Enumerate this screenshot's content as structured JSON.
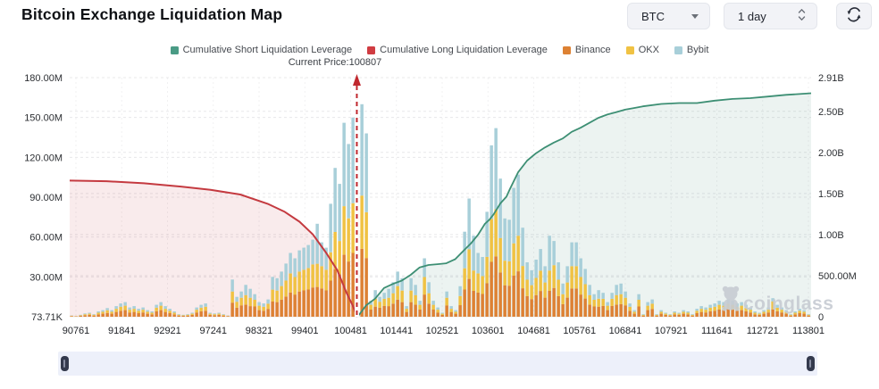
{
  "header": {
    "title": "Bitcoin Exchange Liquidation Map",
    "coin_selector": "BTC",
    "interval_selector": "1 day"
  },
  "legend": [
    {
      "label": "Cumulative Short Liquidation Leverage",
      "color": "#4a9b85"
    },
    {
      "label": "Cumulative Long Liquidation Leverage",
      "color": "#d03c42"
    },
    {
      "label": "Binance",
      "color": "#dd8133"
    },
    {
      "label": "OKX",
      "color": "#f0c243"
    },
    {
      "label": "Bybit",
      "color": "#a8cfd9"
    }
  ],
  "annotation": {
    "current_price_label": "Current Price:100807",
    "current_price": 100807
  },
  "watermark": "coinglass",
  "colors": {
    "current_price_line": "#c0282e",
    "long_area_fill": "rgba(201,62,66,0.10)",
    "short_area_fill": "rgba(70,140,115,0.10)",
    "slider_track": "#edf0fa",
    "slider_handle": "#343a4d"
  },
  "chart_data": {
    "type": "stacked-bar+line",
    "title": "Bitcoin Exchange Liquidation Map",
    "x_ticks": [
      "90761",
      "91841",
      "92921",
      "97241",
      "98321",
      "99401",
      "100481",
      "101441",
      "102521",
      "103601",
      "104681",
      "105761",
      "106841",
      "107921",
      "111641",
      "112721",
      "113801"
    ],
    "left_axis": {
      "ticks": [
        "73.71K",
        "30.00M",
        "60.00M",
        "90.00M",
        "120.00M",
        "150.00M",
        "180.00M"
      ],
      "values_M": [
        0,
        30,
        60,
        90,
        120,
        150,
        180
      ],
      "max_M": 180
    },
    "right_axis": {
      "ticks": [
        "0",
        "500.00M",
        "1.00B",
        "1.50B",
        "2.00B",
        "2.50B",
        "2.91B"
      ],
      "values_B": [
        0,
        0.5,
        1.0,
        1.5,
        2.0,
        2.5,
        2.91
      ],
      "max_B": 2.91
    },
    "current_price_frac": 0.3873,
    "bars": {
      "unit": "M USD",
      "series": [
        {
          "name": "Binance",
          "color": "#dd8133",
          "values": [
            0.5,
            0.3,
            0.7,
            1.1,
            1.4,
            0.9,
            1.8,
            2.3,
            2.9,
            2.3,
            3.6,
            4.5,
            5,
            3.2,
            3.6,
            2.7,
            3.2,
            2.3,
            1.8,
            4.1,
            5,
            3.6,
            2.7,
            1.8,
            0.9,
            0.7,
            0.9,
            1.4,
            3.2,
            4.1,
            4.5,
            1.4,
            1.1,
            1.4,
            0.9,
            0.5,
            10.6,
            6.8,
            8.6,
            9.1,
            8,
            7.7,
            5,
            4.5,
            5.9,
            11.4,
            11,
            12.9,
            15.2,
            18.2,
            16.7,
            19,
            19.8,
            20.5,
            22,
            22.4,
            21.3,
            19.8,
            27.2,
            35.8,
            32,
            46.7,
            41.6,
            48,
            43.8,
            51.2,
            44.2,
            5.4,
            7.6,
            6.8,
            8.1,
            8,
            9.9,
            12.9,
            11,
            3.6,
            11,
            9.1,
            5.4,
            16.7,
            9.9,
            5.4,
            3.2,
            1.4,
            8.6,
            3.6,
            2.3,
            8.7,
            20.5,
            28.5,
            19.5,
            18.2,
            17.1,
            25.3,
            41.3,
            45.4,
            33.3,
            23.7,
            23.4,
            31,
            34.2,
            21.4,
            15.6,
            13.3,
            16.3,
            19.4,
            14.4,
            19.5,
            21.7,
            15.6,
            9.5,
            14.4,
            21.3,
            21.3,
            16.7,
            13.7,
            9.1,
            7.7,
            7.6,
            8.1,
            5,
            8.1,
            9.1,
            9.5,
            8.6,
            4.5,
            2.3,
            7.7,
            0.9,
            5,
            5.9,
            0.9,
            2.3,
            1.4,
            0.9,
            1.8,
            1.4,
            2.3,
            1.8,
            0.9,
            2.7,
            3.6,
            3.2,
            4.1,
            4.5,
            5.4,
            5,
            5.9,
            5.4,
            4.5,
            5,
            4.1,
            3.2,
            1.8,
            1.4,
            2.3,
            3.2,
            5.6,
            4.1,
            3.2,
            2.3,
            0.9,
            1.8,
            2.7,
            2.3,
            0.9
          ]
        },
        {
          "name": "OKX",
          "color": "#f0c243",
          "values": [
            0.3,
            0.2,
            0.4,
            0.8,
            0.9,
            0.6,
            1.2,
            1.5,
            2,
            1.5,
            2.4,
            3,
            3.3,
            2.1,
            2.4,
            1.8,
            2.1,
            1.5,
            1.2,
            2.7,
            3.3,
            2.4,
            1.8,
            1.2,
            0.6,
            0.4,
            0.6,
            0.9,
            2.1,
            2.7,
            3,
            0.9,
            0.8,
            0.9,
            0.6,
            0.3,
            8.4,
            4.5,
            5.7,
            7.2,
            6.3,
            5.1,
            3.3,
            3,
            3.9,
            9,
            8.7,
            10.2,
            12,
            14.4,
            13.2,
            15,
            15.6,
            16.2,
            17.4,
            17.5,
            16.8,
            15.6,
            21.3,
            28,
            25,
            36.5,
            32.5,
            37.5,
            34.3,
            40,
            34.5,
            3.6,
            6,
            4.5,
            5.4,
            6.3,
            7.8,
            10.2,
            8.7,
            2.4,
            8.7,
            7.2,
            3.6,
            13.2,
            7.8,
            3.6,
            2.1,
            0.9,
            5.7,
            2.4,
            1.5,
            6.9,
            16,
            22.3,
            15.3,
            14.4,
            13.5,
            19.8,
            32.3,
            35.5,
            26,
            18.5,
            18.3,
            24.3,
            26.8,
            16.8,
            12.3,
            10.5,
            12.9,
            15.3,
            11.4,
            15.3,
            17.1,
            12.3,
            7.5,
            11.4,
            16.8,
            16.8,
            13.2,
            10.8,
            7.2,
            5.1,
            6,
            5.4,
            3.3,
            5.4,
            7.2,
            7.5,
            5.7,
            3,
            1.5,
            5.1,
            0.6,
            3.3,
            3.9,
            0.6,
            1.5,
            0.9,
            0.6,
            1.2,
            0.9,
            1.5,
            1.2,
            0.6,
            1.8,
            2.4,
            2.1,
            2.7,
            3,
            3.6,
            3.3,
            3.9,
            3.6,
            3,
            3.3,
            2.7,
            2.1,
            1.2,
            0.9,
            1.5,
            2.1,
            6,
            2.7,
            2.1,
            1.5,
            0.6,
            1.2,
            1.8,
            1.5,
            0.6
          ]
        },
        {
          "name": "Bybit",
          "color": "#a8cfd9",
          "values": [
            0.2,
            0.1,
            0.4,
            0.6,
            0.7,
            0.5,
            1,
            1.2,
            1.6,
            1.2,
            2,
            2.5,
            2.7,
            1.7,
            2,
            1.5,
            1.7,
            1.2,
            1,
            2.2,
            2.7,
            2,
            1.5,
            1,
            0.5,
            0.4,
            0.5,
            0.7,
            1.7,
            2.2,
            2.5,
            0.7,
            0.6,
            0.7,
            0.5,
            0.2,
            9,
            3.7,
            4.7,
            7.7,
            6.7,
            4.2,
            2.7,
            2.5,
            3.2,
            9.6,
            9.3,
            10.9,
            12.8,
            15.4,
            14.1,
            16,
            16.6,
            17.3,
            18.6,
            30.1,
            17.9,
            16.6,
            36.5,
            48.2,
            43,
            62.8,
            55.9,
            64.5,
            58.9,
            68.8,
            59.3,
            3,
            6.4,
            3.7,
            4.5,
            6.7,
            8.3,
            10.9,
            9.3,
            2,
            9.3,
            7.7,
            3,
            14.1,
            8.3,
            3,
            1.7,
            0.7,
            4.7,
            2,
            1.2,
            7.4,
            27.5,
            38.2,
            26.2,
            15.4,
            14.4,
            33.9,
            55.4,
            61.1,
            44.7,
            31.8,
            31.3,
            41.7,
            46,
            28.8,
            13.1,
            11.2,
            13.8,
            16.3,
            12.2,
            26.2,
            18.2,
            13.1,
            8,
            12.2,
            17.9,
            17.9,
            14.1,
            11.5,
            7.7,
            4.2,
            6.4,
            4.5,
            2.7,
            4.5,
            7.7,
            8,
            4.7,
            2.5,
            1.2,
            4.2,
            0.5,
            2.7,
            3.2,
            0.5,
            1.2,
            0.7,
            0.5,
            1,
            0.7,
            1.2,
            1,
            0.5,
            1.5,
            2,
            1.7,
            2.2,
            2.5,
            3,
            2.7,
            3.2,
            3,
            2.5,
            2.7,
            2.2,
            1.7,
            1,
            0.7,
            1.2,
            1.7,
            2.4,
            2.2,
            1.7,
            1.2,
            0.5,
            1,
            1.5,
            1.2,
            0.5
          ]
        }
      ]
    },
    "lines": [
      {
        "name": "Cumulative Short Liquidation Leverage",
        "color": "#3d8f74",
        "axis": "right",
        "unit": "B",
        "points": [
          [
            0.39,
            0.02
          ],
          [
            0.4,
            0.14
          ],
          [
            0.412,
            0.22
          ],
          [
            0.424,
            0.35
          ],
          [
            0.436,
            0.4
          ],
          [
            0.448,
            0.44
          ],
          [
            0.46,
            0.51
          ],
          [
            0.472,
            0.6
          ],
          [
            0.484,
            0.63
          ],
          [
            0.496,
            0.64
          ],
          [
            0.508,
            0.65
          ],
          [
            0.52,
            0.7
          ],
          [
            0.533,
            0.82
          ],
          [
            0.541,
            0.89
          ],
          [
            0.551,
            1.0
          ],
          [
            0.56,
            1.13
          ],
          [
            0.566,
            1.18
          ],
          [
            0.572,
            1.25
          ],
          [
            0.581,
            1.38
          ],
          [
            0.589,
            1.46
          ],
          [
            0.593,
            1.54
          ],
          [
            0.605,
            1.76
          ],
          [
            0.617,
            1.9
          ],
          [
            0.629,
            1.99
          ],
          [
            0.641,
            2.06
          ],
          [
            0.653,
            2.12
          ],
          [
            0.665,
            2.17
          ],
          [
            0.677,
            2.25
          ],
          [
            0.689,
            2.3
          ],
          [
            0.701,
            2.36
          ],
          [
            0.713,
            2.42
          ],
          [
            0.725,
            2.46
          ],
          [
            0.737,
            2.49
          ],
          [
            0.749,
            2.52
          ],
          [
            0.761,
            2.54
          ],
          [
            0.773,
            2.56
          ],
          [
            0.798,
            2.59
          ],
          [
            0.822,
            2.6
          ],
          [
            0.846,
            2.6
          ],
          [
            0.87,
            2.63
          ],
          [
            0.894,
            2.65
          ],
          [
            0.918,
            2.66
          ],
          [
            0.942,
            2.68
          ],
          [
            0.966,
            2.7
          ],
          [
            0.984,
            2.71
          ],
          [
            1,
            2.72
          ]
        ]
      },
      {
        "name": "Cumulative Long Liquidation Leverage",
        "color": "#c43a40",
        "axis": "left",
        "unit": "M",
        "points": [
          [
            0,
            102.5
          ],
          [
            0.05,
            102
          ],
          [
            0.1,
            100.5
          ],
          [
            0.15,
            98
          ],
          [
            0.19,
            95.5
          ],
          [
            0.23,
            92
          ],
          [
            0.267,
            85
          ],
          [
            0.29,
            79
          ],
          [
            0.31,
            71.5
          ],
          [
            0.328,
            62
          ],
          [
            0.346,
            48
          ],
          [
            0.361,
            35
          ],
          [
            0.373,
            18.5
          ],
          [
            0.382,
            8
          ],
          [
            0.388,
            0
          ]
        ]
      }
    ]
  }
}
